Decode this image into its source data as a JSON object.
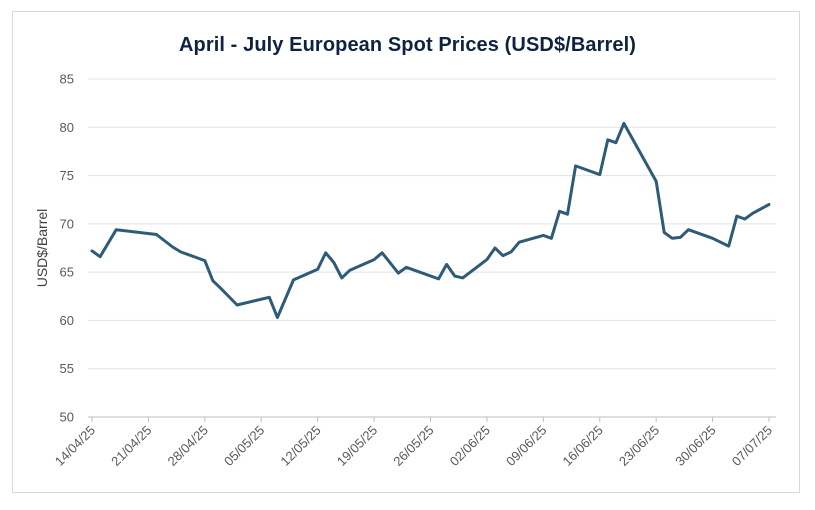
{
  "chart_data": {
    "type": "line",
    "title": "April - July European Spot Prices (USD$/Barrel)",
    "xlabel": "",
    "ylabel": "USD$/Barrel",
    "ylim": [
      50,
      85
    ],
    "yticks": [
      50,
      55,
      60,
      65,
      70,
      75,
      80,
      85
    ],
    "xtick_labels": [
      "14/04/25",
      "21/04/25",
      "28/04/25",
      "05/05/25",
      "12/05/25",
      "19/05/25",
      "26/05/25",
      "02/06/25",
      "09/06/25",
      "16/06/25",
      "23/06/25",
      "30/06/25",
      "07/07/25"
    ],
    "x_range": [
      "2025-04-14",
      "2025-07-07"
    ],
    "grid": true,
    "line_color": "#2e5b78",
    "series": [
      {
        "points": [
          [
            "2025-04-14",
            67.2
          ],
          [
            "2025-04-15",
            66.6
          ],
          [
            "2025-04-17",
            69.4
          ],
          [
            "2025-04-22",
            68.9
          ],
          [
            "2025-04-24",
            67.6
          ],
          [
            "2025-04-25",
            67.1
          ],
          [
            "2025-04-28",
            66.2
          ],
          [
            "2025-04-29",
            64.1
          ],
          [
            "2025-04-30",
            63.3
          ],
          [
            "2025-05-02",
            61.6
          ],
          [
            "2025-05-06",
            62.4
          ],
          [
            "2025-05-07",
            60.3
          ],
          [
            "2025-05-09",
            64.2
          ],
          [
            "2025-05-12",
            65.3
          ],
          [
            "2025-05-13",
            67.0
          ],
          [
            "2025-05-14",
            66.0
          ],
          [
            "2025-05-15",
            64.4
          ],
          [
            "2025-05-16",
            65.2
          ],
          [
            "2025-05-19",
            66.3
          ],
          [
            "2025-05-20",
            67.0
          ],
          [
            "2025-05-22",
            64.9
          ],
          [
            "2025-05-23",
            65.5
          ],
          [
            "2025-05-27",
            64.3
          ],
          [
            "2025-05-28",
            65.8
          ],
          [
            "2025-05-29",
            64.6
          ],
          [
            "2025-05-30",
            64.4
          ],
          [
            "2025-06-02",
            66.3
          ],
          [
            "2025-06-03",
            67.5
          ],
          [
            "2025-06-04",
            66.7
          ],
          [
            "2025-06-05",
            67.1
          ],
          [
            "2025-06-06",
            68.1
          ],
          [
            "2025-06-09",
            68.8
          ],
          [
            "2025-06-10",
            68.5
          ],
          [
            "2025-06-11",
            71.3
          ],
          [
            "2025-06-12",
            71.0
          ],
          [
            "2025-06-13",
            76.0
          ],
          [
            "2025-06-16",
            75.1
          ],
          [
            "2025-06-17",
            78.7
          ],
          [
            "2025-06-18",
            78.4
          ],
          [
            "2025-06-19",
            80.4
          ],
          [
            "2025-06-23",
            74.4
          ],
          [
            "2025-06-24",
            69.1
          ],
          [
            "2025-06-25",
            68.5
          ],
          [
            "2025-06-26",
            68.6
          ],
          [
            "2025-06-27",
            69.4
          ],
          [
            "2025-06-30",
            68.5
          ],
          [
            "2025-07-02",
            67.7
          ],
          [
            "2025-07-03",
            70.8
          ],
          [
            "2025-07-04",
            70.5
          ],
          [
            "2025-07-05",
            71.1
          ],
          [
            "2025-07-07",
            72.0
          ]
        ]
      }
    ]
  }
}
